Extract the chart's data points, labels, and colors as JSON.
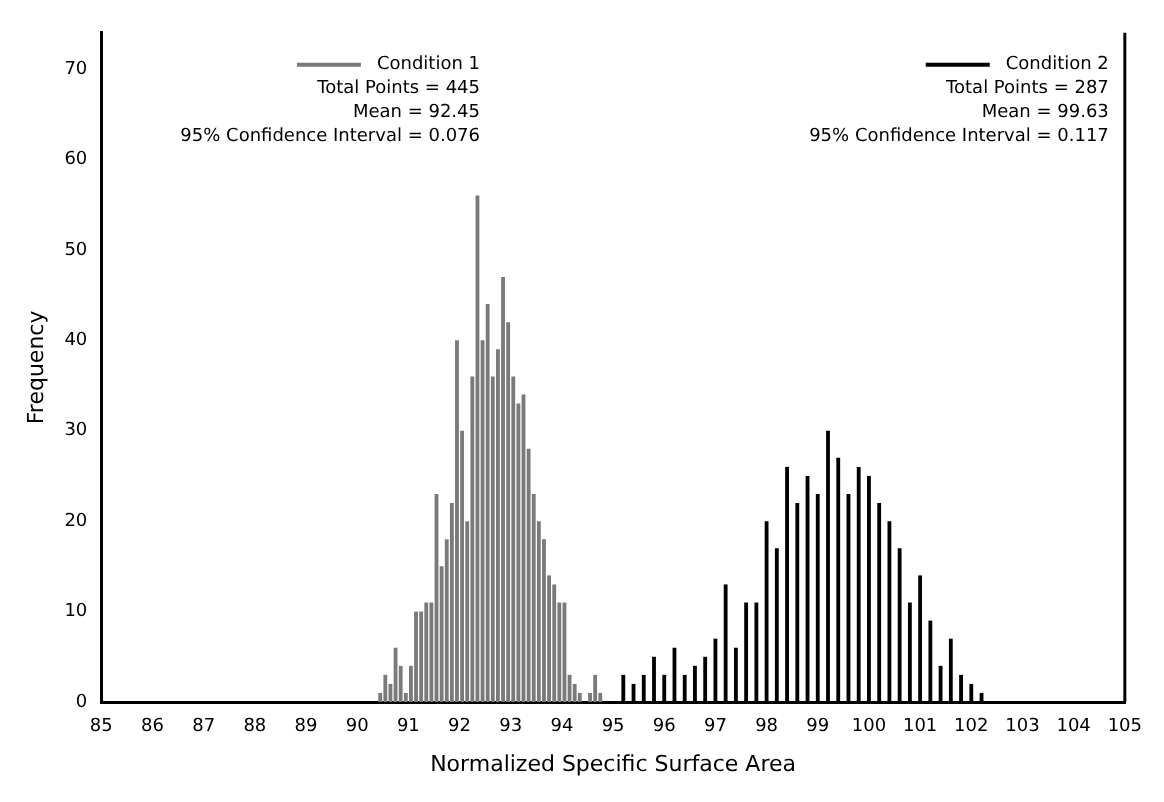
{
  "chart_data": {
    "type": "bar",
    "xlabel": "Normalized Specific Surface Area",
    "ylabel": "Frequency",
    "xlim": [
      85,
      105
    ],
    "xticks": [
      85,
      86,
      87,
      88,
      89,
      90,
      91,
      92,
      93,
      94,
      95,
      96,
      97,
      98,
      99,
      100,
      101,
      102,
      103,
      104,
      105
    ],
    "ylim": [
      0,
      74
    ],
    "yticks": [
      0,
      10,
      20,
      30,
      40,
      50,
      60,
      70
    ],
    "grid": false,
    "legend": "top",
    "series": [
      {
        "name": "Condition 1",
        "color": "#7a7a7a",
        "x": [
          90.45,
          90.55,
          90.65,
          90.75,
          90.85,
          90.95,
          91.05,
          91.15,
          91.25,
          91.35,
          91.45,
          91.55,
          91.65,
          91.75,
          91.85,
          91.95,
          92.05,
          92.15,
          92.25,
          92.35,
          92.45,
          92.55,
          92.65,
          92.75,
          92.85,
          92.95,
          93.05,
          93.15,
          93.25,
          93.35,
          93.45,
          93.55,
          93.65,
          93.75,
          93.85,
          93.95,
          94.05,
          94.15,
          94.25,
          94.35,
          94.45,
          94.55,
          94.65,
          94.75
        ],
        "values": [
          1,
          3,
          2,
          6,
          4,
          1,
          4,
          10,
          10,
          11,
          11,
          23,
          15,
          18,
          22,
          40,
          30,
          20,
          36,
          56,
          40,
          44,
          36,
          39,
          47,
          42,
          36,
          33,
          34,
          28,
          23,
          20,
          18,
          14,
          13,
          11,
          11,
          3,
          2,
          1,
          0,
          1,
          3,
          1
        ]
      },
      {
        "name": "Condition 2",
        "color": "#000000",
        "x": [
          95.2,
          95.4,
          95.6,
          95.8,
          96.0,
          96.2,
          96.4,
          96.6,
          96.8,
          97.0,
          97.2,
          97.4,
          97.6,
          97.8,
          98.0,
          98.2,
          98.4,
          98.6,
          98.8,
          99.0,
          99.2,
          99.4,
          99.6,
          99.8,
          100.0,
          100.2,
          100.4,
          100.6,
          100.8,
          101.0,
          101.2,
          101.4,
          101.6,
          101.8,
          102.0,
          102.2
        ],
        "values": [
          3,
          2,
          3,
          5,
          3,
          6,
          3,
          4,
          5,
          7,
          13,
          6,
          11,
          11,
          20,
          17,
          26,
          22,
          25,
          23,
          30,
          27,
          23,
          26,
          25,
          22,
          20,
          17,
          11,
          14,
          9,
          4,
          7,
          3,
          2,
          1
        ]
      }
    ],
    "annotations": [
      "Total Points = 445",
      "Mean = 92.45",
      "95% Confidence Interval = 0.076",
      "Total Points = 287",
      "Mean = 99.63",
      "95% Confidence Interval = 0.117"
    ]
  }
}
